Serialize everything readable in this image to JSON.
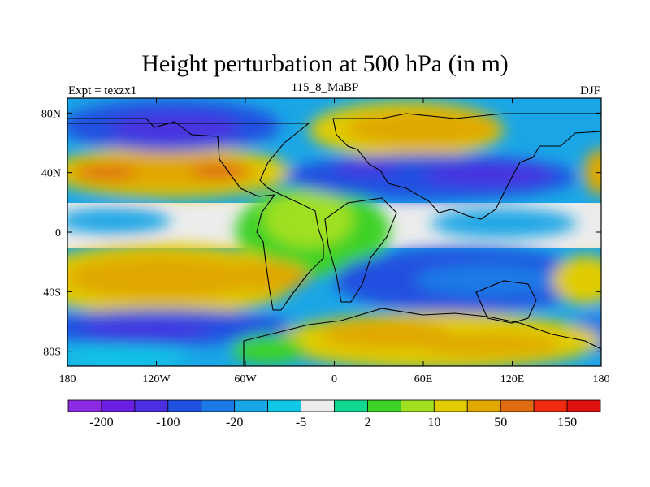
{
  "title": "Height perturbation at 500 hPa (in m)",
  "left_subtitle": "Expt = texzx1",
  "center_subtitle": "115_8_MaBP",
  "right_subtitle": "DJF",
  "map": {
    "lon_range": [
      -180,
      180
    ],
    "lat_range": [
      -90,
      90
    ],
    "lat_ticks": [
      {
        "value": 80,
        "label": "80N"
      },
      {
        "value": 40,
        "label": "40N"
      },
      {
        "value": 0,
        "label": "0"
      },
      {
        "value": -40,
        "label": "40S"
      },
      {
        "value": -80,
        "label": "80S"
      }
    ],
    "lon_ticks": [
      {
        "value": -180,
        "label": "180"
      },
      {
        "value": -120,
        "label": "120W"
      },
      {
        "value": -60,
        "label": "60W"
      },
      {
        "value": 0,
        "label": "0"
      },
      {
        "value": 60,
        "label": "60E"
      },
      {
        "value": 120,
        "label": "120E"
      },
      {
        "value": 180,
        "label": "180"
      }
    ]
  },
  "colorbar": {
    "colors": [
      "#8a2be2",
      "#6a1fe0",
      "#4a30e0",
      "#2050e0",
      "#1c7ae6",
      "#1aa6e6",
      "#10c8e6",
      "#ececec",
      "#10d890",
      "#3cd228",
      "#a0e020",
      "#e0cc00",
      "#e0a800",
      "#e06c10",
      "#f02a10",
      "#e01010"
    ],
    "labels": [
      {
        "boundary": 1,
        "text": "-200"
      },
      {
        "boundary": 3,
        "text": "-100"
      },
      {
        "boundary": 5,
        "text": "-20"
      },
      {
        "boundary": 7,
        "text": "-5"
      },
      {
        "boundary": 9,
        "text": "2"
      },
      {
        "boundary": 11,
        "text": "10"
      },
      {
        "boundary": 13,
        "text": "50"
      },
      {
        "boundary": 15,
        "text": "150"
      }
    ]
  }
}
